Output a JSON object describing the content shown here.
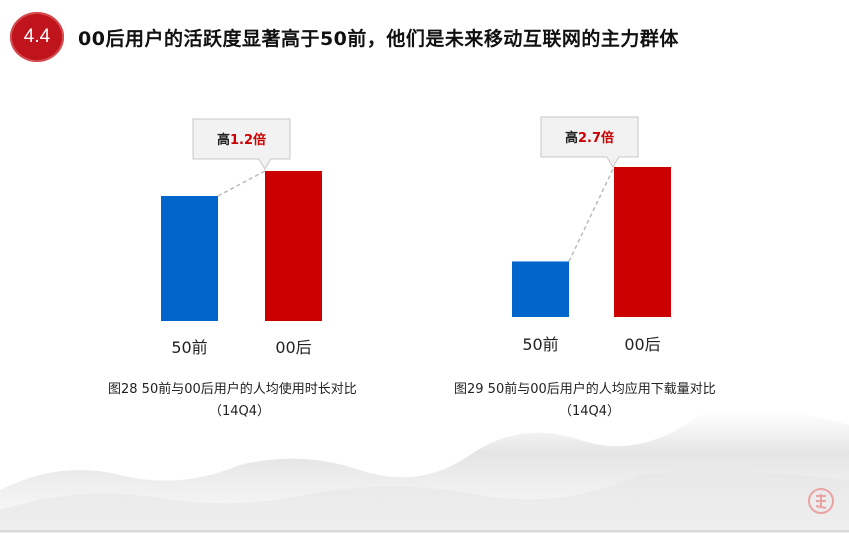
{
  "header": {
    "section_number": "4.4",
    "title": "00后用户的活跃度显著高于50前，他们是未来移动互联网的主力群体"
  },
  "chart_data": [
    {
      "type": "bar",
      "categories": [
        "50前",
        "00后"
      ],
      "values": [
        1,
        1.2
      ],
      "callout": {
        "prefix": "高",
        "value": "1.2倍"
      },
      "caption_line1": "图28 50前与00后用户的人均使用时长对比",
      "caption_line2": "（14Q4）",
      "colors": [
        "#0066cc",
        "#cc0000"
      ]
    },
    {
      "type": "bar",
      "categories": [
        "50前",
        "00后"
      ],
      "values": [
        1,
        2.7
      ],
      "callout": {
        "prefix": "高",
        "value": "2.7倍"
      },
      "caption_line1": "图29 50前与00后用户的人均应用下载量对比",
      "caption_line2": "（14Q4）",
      "colors": [
        "#0066cc",
        "#cc0000"
      ]
    }
  ]
}
